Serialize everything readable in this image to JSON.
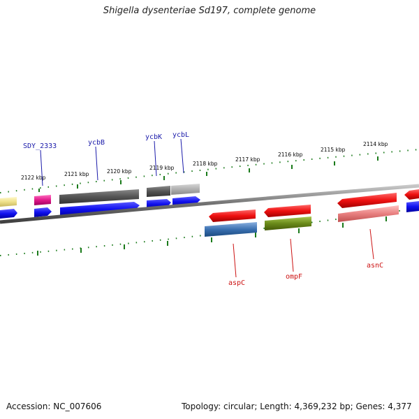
{
  "title": "Shigella dysenteriae Sd197, complete genome",
  "accession_text": "Accession: NC_007606",
  "summary_text": "Topology: circular; Length: 4,369,232 bp; Genes: 4,377",
  "kbp_labels": [
    "2122 kbp",
    "2121 kbp",
    "2120 kbp",
    "2119 kbp",
    "2118 kbp",
    "2117 kbp",
    "2116 kbp",
    "2115 kbp",
    "2114 kbp"
  ],
  "genes_top": [
    {
      "name": "SDY_2333",
      "color": "#1a1aaa"
    },
    {
      "name": "ycbB",
      "color": "#1a1aaa"
    },
    {
      "name": "ycbK",
      "color": "#1a1aaa"
    },
    {
      "name": "ycbL",
      "color": "#1a1aaa"
    }
  ],
  "genes_bottom": [
    {
      "name": "aspC",
      "color": "#cc1111"
    },
    {
      "name": "ompF",
      "color": "#cc1111"
    },
    {
      "name": "asnC",
      "color": "#cc1111"
    }
  ],
  "colors": {
    "backbone": "#808080",
    "tick": "#1a7a1a",
    "forward_cds": "#1010ee",
    "reverse_cds": "#ee1010",
    "gene_dark": "#555555",
    "gene_light": "#b0b0b0",
    "pink": "#e0188a",
    "yellow": "#eee08a",
    "steelblue": "#3a70b0",
    "olive": "#6a8a1a",
    "salmon": "#e88080"
  }
}
